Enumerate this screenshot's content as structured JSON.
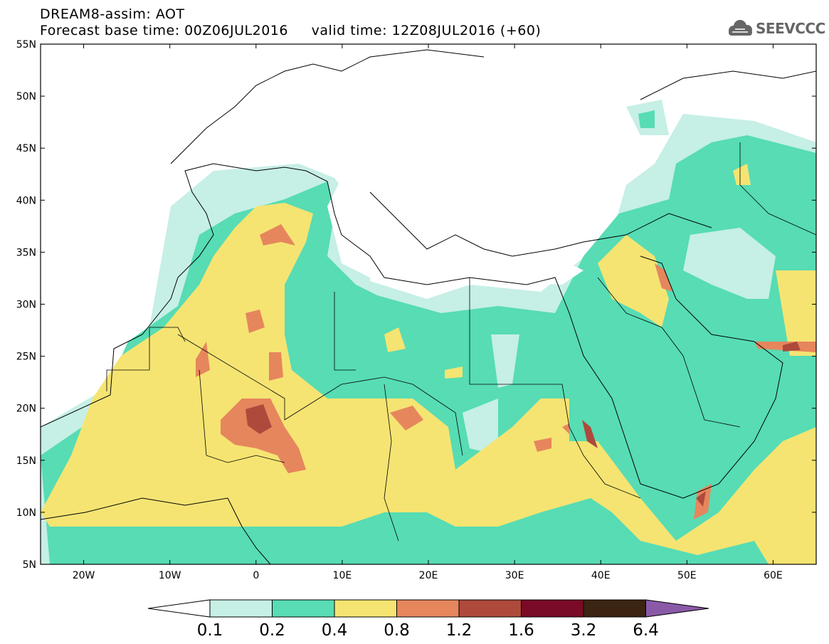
{
  "header": {
    "title_line1": "DREAM8-assim: AOT",
    "title_line2": "Forecast base time: 00Z06JUL2016     valid time: 12Z08JUL2016 (+60)"
  },
  "logo": {
    "text": "SEEVCCC"
  },
  "map": {
    "lon_labels": [
      "20W",
      "10W",
      "0",
      "10E",
      "20E",
      "30E",
      "40E",
      "50E",
      "60E"
    ],
    "lat_labels": [
      "55N",
      "50N",
      "45N",
      "40N",
      "35N",
      "30N",
      "25N",
      "20N",
      "15N",
      "10N",
      "5N"
    ]
  },
  "legend": {
    "levels": [
      "0.1",
      "0.2",
      "0.4",
      "0.8",
      "1.2",
      "1.6",
      "3.2",
      "6.4"
    ],
    "colors": {
      "below": "#ffffff",
      "c1": "#c6efe6",
      "c2": "#57dcb4",
      "c3": "#f5e472",
      "c4": "#e6865d",
      "c5": "#ae4a3c",
      "c6": "#7a0b27",
      "c7": "#3b2412",
      "above": "#8a5aa8"
    }
  }
}
